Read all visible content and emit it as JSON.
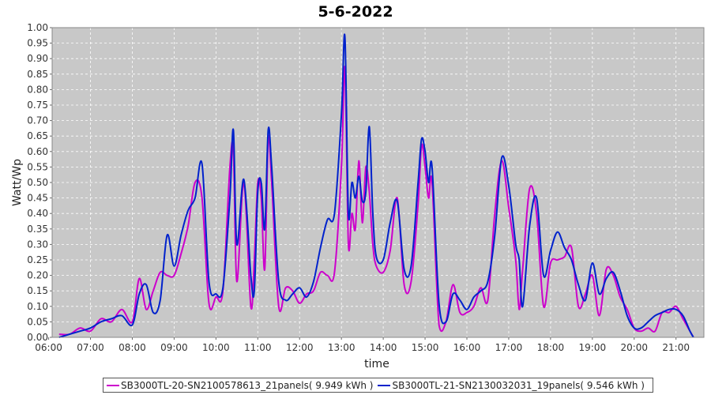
{
  "chart_data": {
    "type": "line",
    "title": "5-6-2022",
    "xlabel": "time",
    "ylabel": "Watt/Wp",
    "xlim": [
      "06:05",
      "21:40"
    ],
    "ylim": [
      0,
      1.0
    ],
    "x_ticks": [
      "06:00",
      "07:00",
      "08:00",
      "09:00",
      "10:00",
      "11:00",
      "12:00",
      "13:00",
      "14:00",
      "15:00",
      "16:00",
      "17:00",
      "18:00",
      "19:00",
      "20:00",
      "21:00"
    ],
    "y_ticks": [
      "0.00",
      "0.05",
      "0.10",
      "0.15",
      "0.20",
      "0.25",
      "0.30",
      "0.35",
      "0.40",
      "0.45",
      "0.50",
      "0.55",
      "0.60",
      "0.65",
      "0.70",
      "0.75",
      "0.80",
      "0.85",
      "0.90",
      "0.95",
      "1.00"
    ],
    "grid": true,
    "legend_position": "bottom",
    "background": "#c8c8c8",
    "series": [
      {
        "name": "SB3000TL-20-SN2100578613_21panels",
        "legend_label": "SB3000TL-20-SN2100578613_21panels( 9.949 kWh )",
        "color": "#cc00cc",
        "x": [
          "06:15",
          "06:30",
          "06:45",
          "07:00",
          "07:15",
          "07:30",
          "07:45",
          "08:00",
          "08:10",
          "08:20",
          "08:30",
          "08:40",
          "08:50",
          "09:00",
          "09:10",
          "09:20",
          "09:30",
          "09:40",
          "09:50",
          "10:00",
          "10:10",
          "10:20",
          "10:25",
          "10:30",
          "10:40",
          "10:50",
          "10:55",
          "11:00",
          "11:05",
          "11:10",
          "11:15",
          "11:20",
          "11:30",
          "11:40",
          "11:50",
          "12:00",
          "12:10",
          "12:20",
          "12:30",
          "12:40",
          "12:50",
          "13:00",
          "13:05",
          "13:10",
          "13:15",
          "13:20",
          "13:25",
          "13:30",
          "13:35",
          "13:40",
          "13:45",
          "13:50",
          "14:00",
          "14:10",
          "14:20",
          "14:30",
          "14:40",
          "14:50",
          "14:55",
          "15:00",
          "15:05",
          "15:10",
          "15:20",
          "15:30",
          "15:40",
          "15:50",
          "16:00",
          "16:10",
          "16:20",
          "16:30",
          "16:40",
          "16:50",
          "17:00",
          "17:10",
          "17:15",
          "17:20",
          "17:30",
          "17:40",
          "17:50",
          "18:00",
          "18:10",
          "18:20",
          "18:30",
          "18:40",
          "18:50",
          "19:00",
          "19:10",
          "19:20",
          "19:30",
          "19:40",
          "19:50",
          "20:00",
          "20:10",
          "20:20",
          "20:30",
          "20:40",
          "20:50",
          "21:00",
          "21:10",
          "21:20",
          "21:25"
        ],
        "values": [
          0.01,
          0.01,
          0.03,
          0.02,
          0.06,
          0.05,
          0.09,
          0.05,
          0.19,
          0.09,
          0.15,
          0.21,
          0.2,
          0.2,
          0.27,
          0.36,
          0.5,
          0.45,
          0.11,
          0.13,
          0.15,
          0.55,
          0.6,
          0.18,
          0.5,
          0.1,
          0.25,
          0.5,
          0.45,
          0.22,
          0.64,
          0.5,
          0.1,
          0.16,
          0.15,
          0.11,
          0.14,
          0.15,
          0.21,
          0.2,
          0.21,
          0.55,
          0.87,
          0.3,
          0.4,
          0.35,
          0.57,
          0.37,
          0.55,
          0.47,
          0.3,
          0.23,
          0.21,
          0.28,
          0.45,
          0.17,
          0.18,
          0.43,
          0.62,
          0.55,
          0.45,
          0.5,
          0.04,
          0.05,
          0.17,
          0.08,
          0.08,
          0.1,
          0.16,
          0.12,
          0.4,
          0.57,
          0.42,
          0.25,
          0.09,
          0.22,
          0.48,
          0.4,
          0.1,
          0.24,
          0.25,
          0.26,
          0.29,
          0.1,
          0.14,
          0.2,
          0.07,
          0.22,
          0.2,
          0.13,
          0.09,
          0.03,
          0.02,
          0.03,
          0.02,
          0.08,
          0.08,
          0.1,
          0.06,
          0.02,
          0.0
        ]
      },
      {
        "name": "SB3000TL-21-SN2130032031_19panels",
        "legend_label": "SB3000TL-21-SN2130032031_19panels( 9.546 kWh )",
        "color": "#0022cc",
        "x": [
          "06:15",
          "06:30",
          "06:45",
          "07:00",
          "07:15",
          "07:30",
          "07:45",
          "08:00",
          "08:10",
          "08:20",
          "08:30",
          "08:40",
          "08:50",
          "09:00",
          "09:10",
          "09:20",
          "09:30",
          "09:40",
          "09:50",
          "10:00",
          "10:10",
          "10:20",
          "10:25",
          "10:30",
          "10:40",
          "10:50",
          "10:55",
          "11:00",
          "11:05",
          "11:10",
          "11:15",
          "11:20",
          "11:30",
          "11:40",
          "11:50",
          "12:00",
          "12:10",
          "12:20",
          "12:30",
          "12:40",
          "12:50",
          "13:00",
          "13:05",
          "13:10",
          "13:15",
          "13:20",
          "13:25",
          "13:30",
          "13:35",
          "13:40",
          "13:45",
          "13:50",
          "14:00",
          "14:10",
          "14:20",
          "14:30",
          "14:40",
          "14:50",
          "14:55",
          "15:00",
          "15:05",
          "15:10",
          "15:20",
          "15:30",
          "15:40",
          "15:50",
          "16:00",
          "16:10",
          "16:20",
          "16:30",
          "16:40",
          "16:50",
          "17:00",
          "17:10",
          "17:15",
          "17:20",
          "17:30",
          "17:40",
          "17:50",
          "18:00",
          "18:10",
          "18:20",
          "18:30",
          "18:40",
          "18:50",
          "19:00",
          "19:10",
          "19:20",
          "19:30",
          "19:40",
          "19:50",
          "20:00",
          "20:10",
          "20:20",
          "20:30",
          "20:40",
          "20:50",
          "21:00",
          "21:10",
          "21:20",
          "21:25"
        ],
        "values": [
          0.0,
          0.01,
          0.02,
          0.03,
          0.05,
          0.06,
          0.07,
          0.04,
          0.14,
          0.17,
          0.08,
          0.12,
          0.33,
          0.23,
          0.33,
          0.41,
          0.45,
          0.56,
          0.18,
          0.14,
          0.16,
          0.45,
          0.67,
          0.3,
          0.51,
          0.2,
          0.15,
          0.47,
          0.5,
          0.35,
          0.67,
          0.55,
          0.18,
          0.12,
          0.14,
          0.16,
          0.13,
          0.18,
          0.29,
          0.38,
          0.4,
          0.72,
          0.97,
          0.4,
          0.5,
          0.45,
          0.52,
          0.44,
          0.47,
          0.68,
          0.4,
          0.26,
          0.25,
          0.37,
          0.44,
          0.22,
          0.23,
          0.5,
          0.64,
          0.6,
          0.5,
          0.55,
          0.11,
          0.05,
          0.14,
          0.12,
          0.09,
          0.13,
          0.15,
          0.18,
          0.33,
          0.58,
          0.49,
          0.3,
          0.25,
          0.1,
          0.36,
          0.45,
          0.2,
          0.28,
          0.34,
          0.29,
          0.25,
          0.17,
          0.12,
          0.24,
          0.14,
          0.19,
          0.21,
          0.15,
          0.07,
          0.03,
          0.03,
          0.05,
          0.07,
          0.08,
          0.09,
          0.09,
          0.07,
          0.02,
          0.0
        ]
      }
    ]
  }
}
